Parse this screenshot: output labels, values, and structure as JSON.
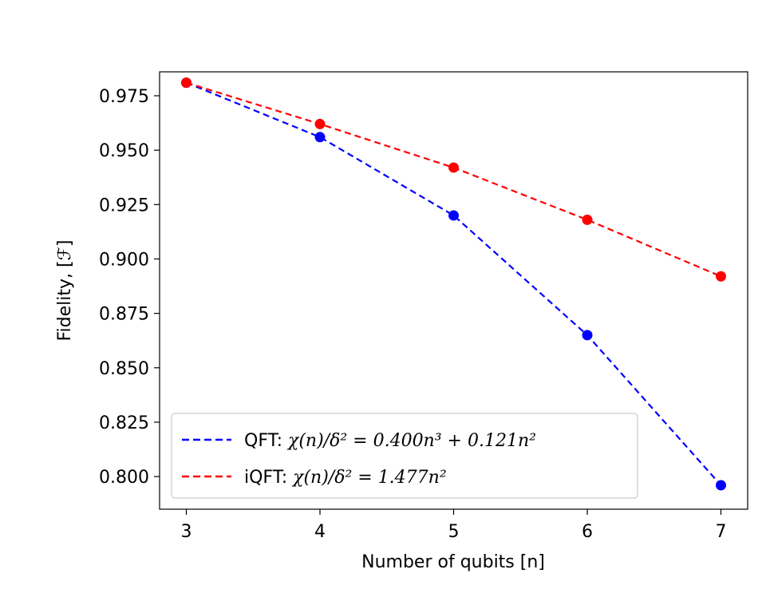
{
  "chart_data": {
    "type": "line",
    "title": "",
    "xlabel": "Number of qubits [n]",
    "ylabel": "Fidelity, [ℱ]",
    "x": [
      3,
      4,
      5,
      6,
      7
    ],
    "xlim": [
      2.8,
      7.2
    ],
    "ylim": [
      0.785,
      0.986
    ],
    "xticks": [
      3,
      4,
      5,
      6,
      7
    ],
    "yticks": [
      0.8,
      0.825,
      0.85,
      0.875,
      0.9,
      0.925,
      0.95,
      0.975
    ],
    "ytick_labels": [
      "0.800",
      "0.825",
      "0.850",
      "0.875",
      "0.900",
      "0.925",
      "0.950",
      "0.975"
    ],
    "grid": false,
    "legend_position": "bottom-left",
    "series": [
      {
        "name": "QFT",
        "label_prefix": "QFT: ",
        "label_math": "χ(n)/δ² = 0.400n³ + 0.121n²",
        "color": "#0000ff",
        "values": [
          0.981,
          0.956,
          0.92,
          0.865,
          0.796
        ]
      },
      {
        "name": "iQFT",
        "label_prefix": "iQFT: ",
        "label_math": "χ(n)/δ² = 1.477n²",
        "color": "#ff0000",
        "values": [
          0.981,
          0.962,
          0.942,
          0.918,
          0.892
        ]
      }
    ]
  }
}
